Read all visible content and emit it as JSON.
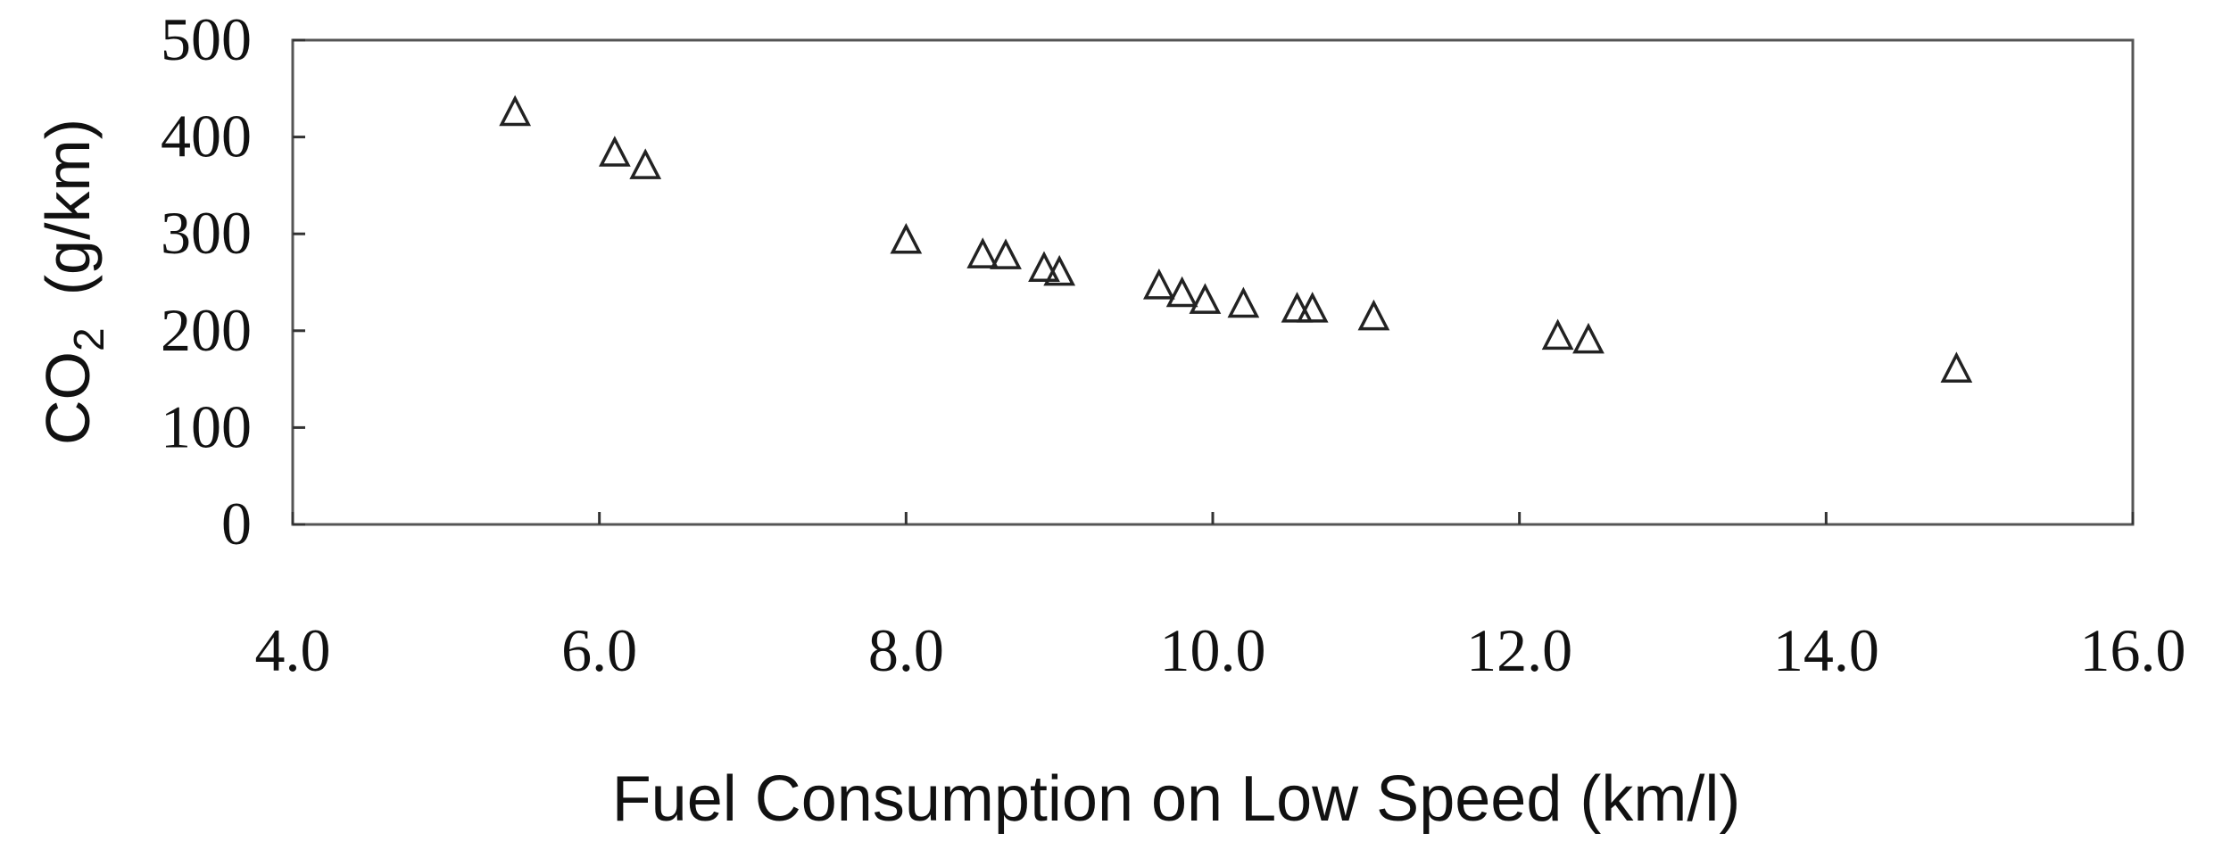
{
  "chart_data": {
    "type": "scatter",
    "xlabel": "Fuel Consumption on Low Speed (km/l)",
    "ylabel": {
      "main": "CO",
      "subscript": "2",
      "unit": "(g/km)"
    },
    "xlim": [
      4.0,
      16.0
    ],
    "ylim": [
      0,
      500
    ],
    "xticks": [
      "4.0",
      "6.0",
      "8.0",
      "10.0",
      "12.0",
      "14.0",
      "16.0"
    ],
    "yticks": [
      "0",
      "100",
      "200",
      "300",
      "400",
      "500"
    ],
    "marker": "open-triangle",
    "grid": false,
    "legend": "none",
    "points": [
      {
        "x": 5.45,
        "y": 425
      },
      {
        "x": 6.1,
        "y": 383
      },
      {
        "x": 6.3,
        "y": 370
      },
      {
        "x": 8.0,
        "y": 293
      },
      {
        "x": 8.5,
        "y": 278
      },
      {
        "x": 8.65,
        "y": 277
      },
      {
        "x": 8.9,
        "y": 264
      },
      {
        "x": 9.0,
        "y": 260
      },
      {
        "x": 9.65,
        "y": 246
      },
      {
        "x": 9.8,
        "y": 238
      },
      {
        "x": 9.95,
        "y": 231
      },
      {
        "x": 10.2,
        "y": 227
      },
      {
        "x": 10.55,
        "y": 222
      },
      {
        "x": 10.65,
        "y": 222
      },
      {
        "x": 11.05,
        "y": 214
      },
      {
        "x": 12.25,
        "y": 194
      },
      {
        "x": 12.45,
        "y": 190
      },
      {
        "x": 14.85,
        "y": 160
      }
    ]
  }
}
